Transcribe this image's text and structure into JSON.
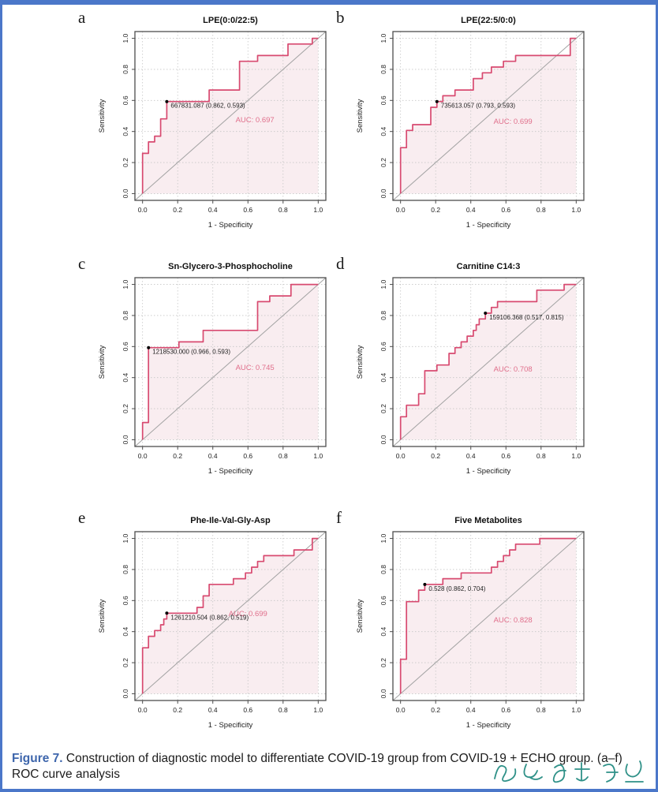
{
  "figure": {
    "caption_label": "Figure 7.",
    "caption_text": "Construction of diagnostic model to differentiate COVID-19 group from COVID-19 + ECHO group. (a–f) ROC curve analysis",
    "caption_label_color": "#3e66ac",
    "watermark_color": "#2f9188"
  },
  "colors": {
    "curve": "#d84a70",
    "fill": "#f9edf0",
    "auc_text": "#e06f8b",
    "diagonal": "#a3a3a3",
    "grid": "#c6c6c6",
    "box": "#4d4d4d",
    "tick_text": "#222222",
    "frame_blue": "#4b77c9"
  },
  "axis": {
    "x_label": "1 - Specificity",
    "y_label": "Sensitivity",
    "x_ticks": [
      "0.0",
      "0.2",
      "0.4",
      "0.6",
      "0.8",
      "1.0"
    ],
    "y_ticks": [
      "0.0",
      "0.2",
      "0.4",
      "0.6",
      "0.8",
      "1.0"
    ]
  },
  "chart_data": [
    {
      "panel": "a",
      "type": "line",
      "title": "LPE(0:0/22:5)",
      "auc": 0.697,
      "auc_label": "AUC: 0.697",
      "auc_pos": [
        0.64,
        0.46
      ],
      "marker": {
        "x": 0.138,
        "y": 0.593,
        "label": "667831.087 (0.862, 0.593)"
      },
      "xlabel": "1 - Specificity",
      "ylabel": "Sensitivity",
      "xlim": [
        0,
        1
      ],
      "ylim": [
        0,
        1
      ],
      "grid": true,
      "points": [
        [
          0,
          0
        ],
        [
          0,
          0.259
        ],
        [
          0.034,
          0.259
        ],
        [
          0.034,
          0.333
        ],
        [
          0.069,
          0.333
        ],
        [
          0.069,
          0.37
        ],
        [
          0.103,
          0.37
        ],
        [
          0.103,
          0.481
        ],
        [
          0.138,
          0.481
        ],
        [
          0.138,
          0.593
        ],
        [
          0.379,
          0.593
        ],
        [
          0.379,
          0.667
        ],
        [
          0.552,
          0.667
        ],
        [
          0.552,
          0.852
        ],
        [
          0.655,
          0.852
        ],
        [
          0.655,
          0.889
        ],
        [
          0.828,
          0.889
        ],
        [
          0.828,
          0.963
        ],
        [
          0.966,
          0.963
        ],
        [
          0.966,
          1
        ],
        [
          1,
          1
        ]
      ]
    },
    {
      "panel": "b",
      "type": "line",
      "title": "LPE(22:5/0:0)",
      "auc": 0.699,
      "auc_label": "AUC: 0.699",
      "auc_pos": [
        0.64,
        0.45
      ],
      "marker": {
        "x": 0.207,
        "y": 0.593,
        "label": "735613.057 (0.793, 0.593)"
      },
      "xlabel": "1 - Specificity",
      "ylabel": "Sensitivity",
      "xlim": [
        0,
        1
      ],
      "ylim": [
        0,
        1
      ],
      "grid": true,
      "points": [
        [
          0,
          0
        ],
        [
          0,
          0.296
        ],
        [
          0.034,
          0.296
        ],
        [
          0.034,
          0.407
        ],
        [
          0.069,
          0.407
        ],
        [
          0.069,
          0.444
        ],
        [
          0.172,
          0.444
        ],
        [
          0.172,
          0.556
        ],
        [
          0.207,
          0.556
        ],
        [
          0.207,
          0.593
        ],
        [
          0.241,
          0.593
        ],
        [
          0.241,
          0.63
        ],
        [
          0.31,
          0.63
        ],
        [
          0.31,
          0.667
        ],
        [
          0.414,
          0.667
        ],
        [
          0.414,
          0.741
        ],
        [
          0.466,
          0.741
        ],
        [
          0.466,
          0.778
        ],
        [
          0.517,
          0.778
        ],
        [
          0.517,
          0.815
        ],
        [
          0.586,
          0.815
        ],
        [
          0.586,
          0.852
        ],
        [
          0.655,
          0.852
        ],
        [
          0.655,
          0.889
        ],
        [
          0.966,
          0.889
        ],
        [
          0.966,
          1
        ],
        [
          1,
          1
        ]
      ]
    },
    {
      "panel": "c",
      "type": "line",
      "title": "Sn-Glycero-3-Phosphocholine",
      "auc": 0.745,
      "auc_label": "AUC: 0.745",
      "auc_pos": [
        0.64,
        0.45
      ],
      "marker": {
        "x": 0.034,
        "y": 0.593,
        "label": "1218530.000 (0.966, 0.593)"
      },
      "xlabel": "1 - Specificity",
      "ylabel": "Sensitivity",
      "xlim": [
        0,
        1
      ],
      "ylim": [
        0,
        1
      ],
      "grid": true,
      "points": [
        [
          0,
          0
        ],
        [
          0,
          0.111
        ],
        [
          0.034,
          0.111
        ],
        [
          0.034,
          0.593
        ],
        [
          0.207,
          0.593
        ],
        [
          0.207,
          0.63
        ],
        [
          0.345,
          0.63
        ],
        [
          0.345,
          0.704
        ],
        [
          0.655,
          0.704
        ],
        [
          0.655,
          0.889
        ],
        [
          0.724,
          0.889
        ],
        [
          0.724,
          0.926
        ],
        [
          0.845,
          0.926
        ],
        [
          0.845,
          1
        ],
        [
          1,
          1
        ]
      ]
    },
    {
      "panel": "d",
      "type": "line",
      "title": "Carnitine C14:3",
      "auc": 0.708,
      "auc_label": "AUC: 0.708",
      "auc_pos": [
        0.64,
        0.44
      ],
      "marker": {
        "x": 0.483,
        "y": 0.815,
        "label": "159106.368 (0.517, 0.815)"
      },
      "xlabel": "1 - Specificity",
      "ylabel": "Sensitivity",
      "xlim": [
        0,
        1
      ],
      "ylim": [
        0,
        1
      ],
      "grid": true,
      "points": [
        [
          0,
          0
        ],
        [
          0,
          0.148
        ],
        [
          0.034,
          0.148
        ],
        [
          0.034,
          0.222
        ],
        [
          0.103,
          0.222
        ],
        [
          0.103,
          0.296
        ],
        [
          0.138,
          0.296
        ],
        [
          0.138,
          0.444
        ],
        [
          0.207,
          0.444
        ],
        [
          0.207,
          0.481
        ],
        [
          0.276,
          0.481
        ],
        [
          0.276,
          0.556
        ],
        [
          0.31,
          0.556
        ],
        [
          0.31,
          0.593
        ],
        [
          0.345,
          0.593
        ],
        [
          0.345,
          0.63
        ],
        [
          0.379,
          0.63
        ],
        [
          0.379,
          0.667
        ],
        [
          0.414,
          0.667
        ],
        [
          0.414,
          0.704
        ],
        [
          0.431,
          0.704
        ],
        [
          0.431,
          0.741
        ],
        [
          0.448,
          0.741
        ],
        [
          0.448,
          0.778
        ],
        [
          0.483,
          0.778
        ],
        [
          0.483,
          0.815
        ],
        [
          0.517,
          0.815
        ],
        [
          0.517,
          0.852
        ],
        [
          0.552,
          0.852
        ],
        [
          0.552,
          0.889
        ],
        [
          0.776,
          0.889
        ],
        [
          0.776,
          0.963
        ],
        [
          0.931,
          0.963
        ],
        [
          0.931,
          1
        ],
        [
          1,
          1
        ]
      ]
    },
    {
      "panel": "e",
      "type": "line",
      "title": "Phe-Ile-Val-Gly-Asp",
      "auc": 0.699,
      "auc_label": "AUC: 0.699",
      "auc_pos": [
        0.6,
        0.5
      ],
      "marker": {
        "x": 0.138,
        "y": 0.519,
        "label": "1261210.504 (0.862, 0.519)"
      },
      "xlabel": "1 - Specificity",
      "ylabel": "Sensitivity",
      "xlim": [
        0,
        1
      ],
      "ylim": [
        0,
        1
      ],
      "grid": true,
      "points": [
        [
          0,
          0
        ],
        [
          0,
          0.296
        ],
        [
          0.034,
          0.296
        ],
        [
          0.034,
          0.37
        ],
        [
          0.069,
          0.37
        ],
        [
          0.069,
          0.407
        ],
        [
          0.103,
          0.407
        ],
        [
          0.103,
          0.444
        ],
        [
          0.121,
          0.444
        ],
        [
          0.121,
          0.481
        ],
        [
          0.138,
          0.481
        ],
        [
          0.138,
          0.519
        ],
        [
          0.31,
          0.519
        ],
        [
          0.31,
          0.556
        ],
        [
          0.345,
          0.556
        ],
        [
          0.345,
          0.63
        ],
        [
          0.379,
          0.63
        ],
        [
          0.379,
          0.704
        ],
        [
          0.517,
          0.704
        ],
        [
          0.517,
          0.741
        ],
        [
          0.586,
          0.741
        ],
        [
          0.586,
          0.778
        ],
        [
          0.621,
          0.778
        ],
        [
          0.621,
          0.815
        ],
        [
          0.655,
          0.815
        ],
        [
          0.655,
          0.852
        ],
        [
          0.69,
          0.852
        ],
        [
          0.69,
          0.889
        ],
        [
          0.862,
          0.889
        ],
        [
          0.862,
          0.926
        ],
        [
          0.966,
          0.926
        ],
        [
          0.966,
          1
        ],
        [
          1,
          1
        ]
      ]
    },
    {
      "panel": "f",
      "type": "line",
      "title": "Five Metabolites",
      "auc": 0.828,
      "auc_label": "AUC: 0.828",
      "auc_pos": [
        0.64,
        0.46
      ],
      "marker": {
        "x": 0.138,
        "y": 0.704,
        "label": "0.528 (0.862, 0.704)"
      },
      "xlabel": "1 - Specificity",
      "ylabel": "Sensitivity",
      "xlim": [
        0,
        1
      ],
      "ylim": [
        0,
        1
      ],
      "grid": true,
      "points": [
        [
          0,
          0
        ],
        [
          0,
          0.222
        ],
        [
          0.034,
          0.222
        ],
        [
          0.034,
          0.593
        ],
        [
          0.103,
          0.593
        ],
        [
          0.103,
          0.667
        ],
        [
          0.138,
          0.667
        ],
        [
          0.138,
          0.704
        ],
        [
          0.241,
          0.704
        ],
        [
          0.241,
          0.741
        ],
        [
          0.345,
          0.741
        ],
        [
          0.345,
          0.778
        ],
        [
          0.517,
          0.778
        ],
        [
          0.517,
          0.815
        ],
        [
          0.552,
          0.815
        ],
        [
          0.552,
          0.852
        ],
        [
          0.586,
          0.852
        ],
        [
          0.586,
          0.889
        ],
        [
          0.621,
          0.889
        ],
        [
          0.621,
          0.926
        ],
        [
          0.655,
          0.926
        ],
        [
          0.655,
          0.963
        ],
        [
          0.793,
          0.963
        ],
        [
          0.793,
          1
        ],
        [
          1,
          1
        ]
      ]
    }
  ]
}
